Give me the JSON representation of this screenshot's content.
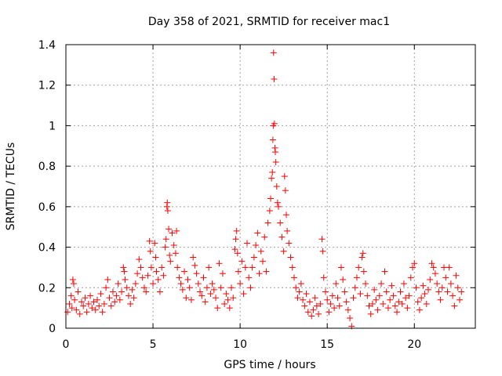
{
  "chart_data": {
    "type": "scatter",
    "title": "Day 358 of 2021, SRMTID for receiver mac1",
    "xlabel": "GPS time / hours",
    "ylabel": "SRMTID / TECUs",
    "xlim": [
      0,
      23.5
    ],
    "ylim": [
      0,
      1.4
    ],
    "x_ticks": [
      0,
      5,
      10,
      15,
      20
    ],
    "x_tick_labels": [
      "0",
      "5",
      "10",
      "15",
      "20"
    ],
    "y_ticks": [
      0,
      0.2,
      0.4,
      0.6,
      0.8,
      1.0,
      1.2,
      1.4
    ],
    "y_tick_labels": [
      "0",
      "0.2",
      "0.4",
      "0.6",
      "0.8",
      "1",
      "1.2",
      "1.4"
    ],
    "grid": true,
    "marker": "+",
    "color": "#ff0000",
    "series": [
      {
        "name": "SRMTID",
        "points": [
          [
            0.1,
            0.08
          ],
          [
            0.2,
            0.12
          ],
          [
            0.3,
            0.16
          ],
          [
            0.35,
            0.1
          ],
          [
            0.4,
            0.24
          ],
          [
            0.45,
            0.22
          ],
          [
            0.5,
            0.14
          ],
          [
            0.6,
            0.09
          ],
          [
            0.7,
            0.18
          ],
          [
            0.8,
            0.07
          ],
          [
            0.9,
            0.13
          ],
          [
            1.0,
            0.11
          ],
          [
            1.1,
            0.15
          ],
          [
            1.2,
            0.08
          ],
          [
            1.3,
            0.12
          ],
          [
            1.4,
            0.16
          ],
          [
            1.5,
            0.1
          ],
          [
            1.6,
            0.13
          ],
          [
            1.7,
            0.09
          ],
          [
            1.8,
            0.14
          ],
          [
            1.9,
            0.11
          ],
          [
            2.0,
            0.17
          ],
          [
            2.1,
            0.08
          ],
          [
            2.2,
            0.12
          ],
          [
            2.3,
            0.2
          ],
          [
            2.4,
            0.24
          ],
          [
            2.5,
            0.15
          ],
          [
            2.6,
            0.11
          ],
          [
            2.7,
            0.18
          ],
          [
            2.8,
            0.13
          ],
          [
            2.9,
            0.16
          ],
          [
            3.0,
            0.22
          ],
          [
            3.1,
            0.14
          ],
          [
            3.2,
            0.18
          ],
          [
            3.3,
            0.3
          ],
          [
            3.35,
            0.28
          ],
          [
            3.4,
            0.24
          ],
          [
            3.5,
            0.2
          ],
          [
            3.6,
            0.16
          ],
          [
            3.7,
            0.12
          ],
          [
            3.8,
            0.19
          ],
          [
            3.9,
            0.15
          ],
          [
            4.0,
            0.22
          ],
          [
            4.1,
            0.27
          ],
          [
            4.2,
            0.34
          ],
          [
            4.3,
            0.3
          ],
          [
            4.4,
            0.25
          ],
          [
            4.5,
            0.2
          ],
          [
            4.6,
            0.18
          ],
          [
            4.7,
            0.26
          ],
          [
            4.8,
            0.43
          ],
          [
            4.85,
            0.38
          ],
          [
            4.9,
            0.3
          ],
          [
            5.0,
            0.22
          ],
          [
            5.1,
            0.42
          ],
          [
            5.15,
            0.35
          ],
          [
            5.2,
            0.28
          ],
          [
            5.3,
            0.24
          ],
          [
            5.4,
            0.18
          ],
          [
            5.5,
            0.3
          ],
          [
            5.6,
            0.26
          ],
          [
            5.7,
            0.4
          ],
          [
            5.75,
            0.44
          ],
          [
            5.8,
            0.6
          ],
          [
            5.82,
            0.62
          ],
          [
            5.85,
            0.58
          ],
          [
            5.9,
            0.49
          ],
          [
            5.95,
            0.36
          ],
          [
            6.0,
            0.33
          ],
          [
            6.1,
            0.47
          ],
          [
            6.2,
            0.41
          ],
          [
            6.3,
            0.37
          ],
          [
            6.35,
            0.48
          ],
          [
            6.4,
            0.3
          ],
          [
            6.5,
            0.25
          ],
          [
            6.6,
            0.22
          ],
          [
            6.7,
            0.19
          ],
          [
            6.8,
            0.28
          ],
          [
            6.9,
            0.15
          ],
          [
            7.0,
            0.24
          ],
          [
            7.1,
            0.2
          ],
          [
            7.2,
            0.14
          ],
          [
            7.3,
            0.35
          ],
          [
            7.4,
            0.31
          ],
          [
            7.5,
            0.27
          ],
          [
            7.6,
            0.22
          ],
          [
            7.7,
            0.18
          ],
          [
            7.8,
            0.16
          ],
          [
            7.9,
            0.25
          ],
          [
            8.0,
            0.13
          ],
          [
            8.1,
            0.2
          ],
          [
            8.2,
            0.3
          ],
          [
            8.3,
            0.17
          ],
          [
            8.4,
            0.22
          ],
          [
            8.5,
            0.19
          ],
          [
            8.6,
            0.15
          ],
          [
            8.7,
            0.1
          ],
          [
            8.8,
            0.32
          ],
          [
            8.9,
            0.2
          ],
          [
            9.0,
            0.27
          ],
          [
            9.1,
            0.12
          ],
          [
            9.2,
            0.17
          ],
          [
            9.3,
            0.14
          ],
          [
            9.4,
            0.1
          ],
          [
            9.5,
            0.2
          ],
          [
            9.6,
            0.15
          ],
          [
            9.7,
            0.39
          ],
          [
            9.75,
            0.44
          ],
          [
            9.8,
            0.48
          ],
          [
            9.85,
            0.37
          ],
          [
            9.9,
            0.28
          ],
          [
            10.0,
            0.22
          ],
          [
            10.1,
            0.33
          ],
          [
            10.2,
            0.17
          ],
          [
            10.3,
            0.3
          ],
          [
            10.4,
            0.42
          ],
          [
            10.5,
            0.25
          ],
          [
            10.6,
            0.2
          ],
          [
            10.7,
            0.3
          ],
          [
            10.8,
            0.35
          ],
          [
            10.9,
            0.41
          ],
          [
            11.0,
            0.47
          ],
          [
            11.1,
            0.27
          ],
          [
            11.2,
            0.38
          ],
          [
            11.3,
            0.33
          ],
          [
            11.4,
            0.45
          ],
          [
            11.5,
            0.28
          ],
          [
            11.6,
            0.52
          ],
          [
            11.7,
            0.58
          ],
          [
            11.75,
            0.64
          ],
          [
            11.8,
            0.74
          ],
          [
            11.85,
            0.77
          ],
          [
            11.88,
            0.93
          ],
          [
            11.9,
            1.0
          ],
          [
            11.92,
            1.36
          ],
          [
            11.95,
            1.23
          ],
          [
            11.97,
            1.01
          ],
          [
            12.0,
            0.89
          ],
          [
            12.02,
            0.87
          ],
          [
            12.05,
            0.82
          ],
          [
            12.1,
            0.7
          ],
          [
            12.15,
            0.62
          ],
          [
            12.2,
            0.6
          ],
          [
            12.3,
            0.52
          ],
          [
            12.4,
            0.45
          ],
          [
            12.5,
            0.38
          ],
          [
            12.55,
            0.75
          ],
          [
            12.6,
            0.68
          ],
          [
            12.65,
            0.56
          ],
          [
            12.7,
            0.48
          ],
          [
            12.8,
            0.42
          ],
          [
            12.9,
            0.35
          ],
          [
            13.0,
            0.3
          ],
          [
            13.1,
            0.25
          ],
          [
            13.2,
            0.2
          ],
          [
            13.3,
            0.15
          ],
          [
            13.4,
            0.18
          ],
          [
            13.5,
            0.22
          ],
          [
            13.6,
            0.14
          ],
          [
            13.7,
            0.11
          ],
          [
            13.8,
            0.17
          ],
          [
            13.9,
            0.08
          ],
          [
            14.0,
            0.13
          ],
          [
            14.1,
            0.06
          ],
          [
            14.2,
            0.09
          ],
          [
            14.3,
            0.15
          ],
          [
            14.4,
            0.11
          ],
          [
            14.5,
            0.07
          ],
          [
            14.6,
            0.12
          ],
          [
            14.7,
            0.44
          ],
          [
            14.75,
            0.38
          ],
          [
            14.8,
            0.25
          ],
          [
            14.9,
            0.18
          ],
          [
            15.0,
            0.14
          ],
          [
            15.1,
            0.08
          ],
          [
            15.2,
            0.12
          ],
          [
            15.3,
            0.16
          ],
          [
            15.4,
            0.1
          ],
          [
            15.5,
            0.22
          ],
          [
            15.6,
            0.15
          ],
          [
            15.7,
            0.11
          ],
          [
            15.8,
            0.3
          ],
          [
            15.9,
            0.24
          ],
          [
            16.0,
            0.18
          ],
          [
            16.1,
            0.13
          ],
          [
            16.2,
            0.09
          ],
          [
            16.3,
            0.05
          ],
          [
            16.4,
            0.01
          ],
          [
            16.5,
            0.15
          ],
          [
            16.6,
            0.2
          ],
          [
            16.7,
            0.25
          ],
          [
            16.8,
            0.3
          ],
          [
            16.9,
            0.17
          ],
          [
            17.0,
            0.35
          ],
          [
            17.05,
            0.37
          ],
          [
            17.1,
            0.28
          ],
          [
            17.2,
            0.22
          ],
          [
            17.3,
            0.16
          ],
          [
            17.4,
            0.11
          ],
          [
            17.5,
            0.07
          ],
          [
            17.6,
            0.12
          ],
          [
            17.7,
            0.19
          ],
          [
            17.8,
            0.14
          ],
          [
            17.9,
            0.09
          ],
          [
            18.0,
            0.16
          ],
          [
            18.1,
            0.22
          ],
          [
            18.2,
            0.12
          ],
          [
            18.3,
            0.28
          ],
          [
            18.4,
            0.18
          ],
          [
            18.5,
            0.1
          ],
          [
            18.6,
            0.14
          ],
          [
            18.7,
            0.21
          ],
          [
            18.8,
            0.16
          ],
          [
            18.9,
            0.11
          ],
          [
            19.0,
            0.08
          ],
          [
            19.1,
            0.13
          ],
          [
            19.2,
            0.18
          ],
          [
            19.3,
            0.12
          ],
          [
            19.4,
            0.22
          ],
          [
            19.5,
            0.15
          ],
          [
            19.6,
            0.1
          ],
          [
            19.7,
            0.16
          ],
          [
            19.8,
            0.25
          ],
          [
            19.9,
            0.3
          ],
          [
            20.0,
            0.32
          ],
          [
            20.1,
            0.2
          ],
          [
            20.2,
            0.13
          ],
          [
            20.3,
            0.09
          ],
          [
            20.4,
            0.15
          ],
          [
            20.5,
            0.21
          ],
          [
            20.6,
            0.17
          ],
          [
            20.7,
            0.12
          ],
          [
            20.8,
            0.19
          ],
          [
            20.9,
            0.24
          ],
          [
            21.0,
            0.32
          ],
          [
            21.1,
            0.3
          ],
          [
            21.2,
            0.27
          ],
          [
            21.3,
            0.22
          ],
          [
            21.4,
            0.18
          ],
          [
            21.5,
            0.14
          ],
          [
            21.6,
            0.2
          ],
          [
            21.7,
            0.3
          ],
          [
            21.8,
            0.25
          ],
          [
            21.9,
            0.18
          ],
          [
            22.0,
            0.3
          ],
          [
            22.1,
            0.22
          ],
          [
            22.2,
            0.16
          ],
          [
            22.3,
            0.11
          ],
          [
            22.4,
            0.26
          ],
          [
            22.5,
            0.2
          ],
          [
            22.6,
            0.14
          ],
          [
            22.7,
            0.18
          ]
        ]
      }
    ]
  }
}
